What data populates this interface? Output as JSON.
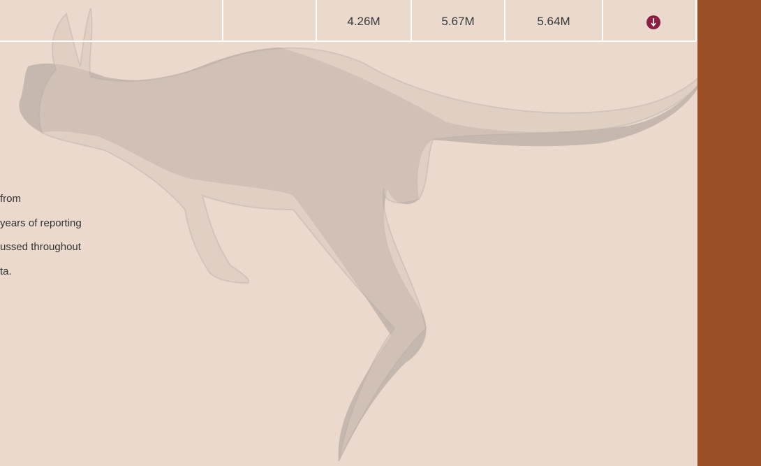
{
  "table": {
    "rows": [
      [
        "4.26M",
        "5.67M",
        "5.64M"
      ]
    ]
  },
  "paragraph": {
    "lines": [
      "from",
      "years of reporting",
      "ussed throughout",
      "ta."
    ]
  }
}
